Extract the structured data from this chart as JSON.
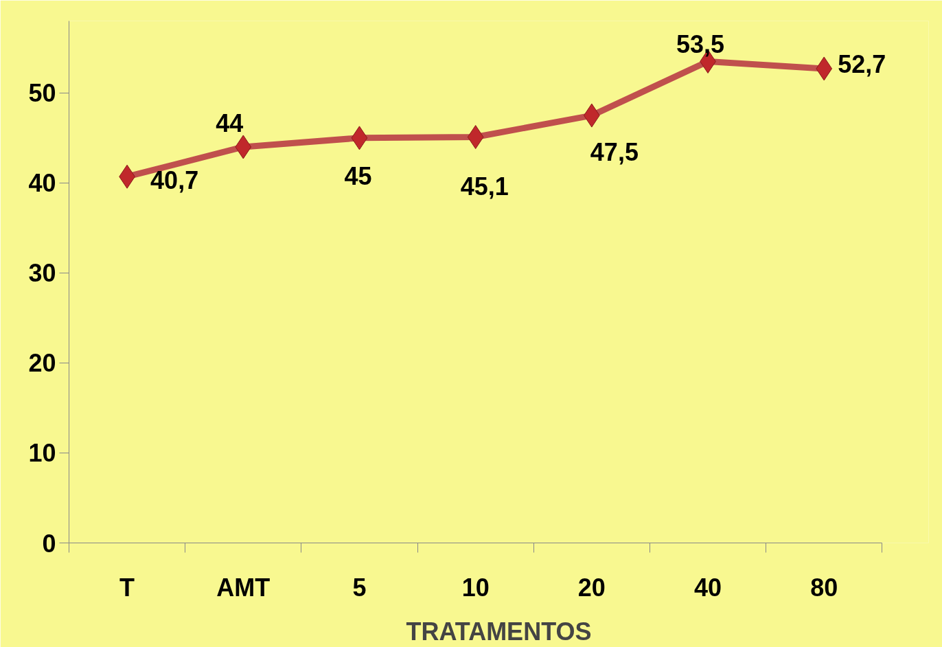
{
  "chart_data": {
    "type": "line",
    "xlabel": "TRATAMENTOS",
    "categories": [
      "T",
      "AMT",
      "5",
      "10",
      "20",
      "40",
      "80"
    ],
    "series": [
      {
        "color": "#c0504d",
        "values": [
          40.7,
          44,
          45,
          45.1,
          47.5,
          53.5,
          52.7
        ],
        "value_labels": [
          "40,7",
          "44",
          "45",
          "45,1",
          "47,5",
          "53,5",
          "52,7"
        ]
      }
    ],
    "ylim": [
      0,
      58
    ],
    "yticks": [
      0,
      10,
      20,
      30,
      40,
      50
    ],
    "grid": false,
    "marker": "diamond",
    "line_style": "solid"
  }
}
